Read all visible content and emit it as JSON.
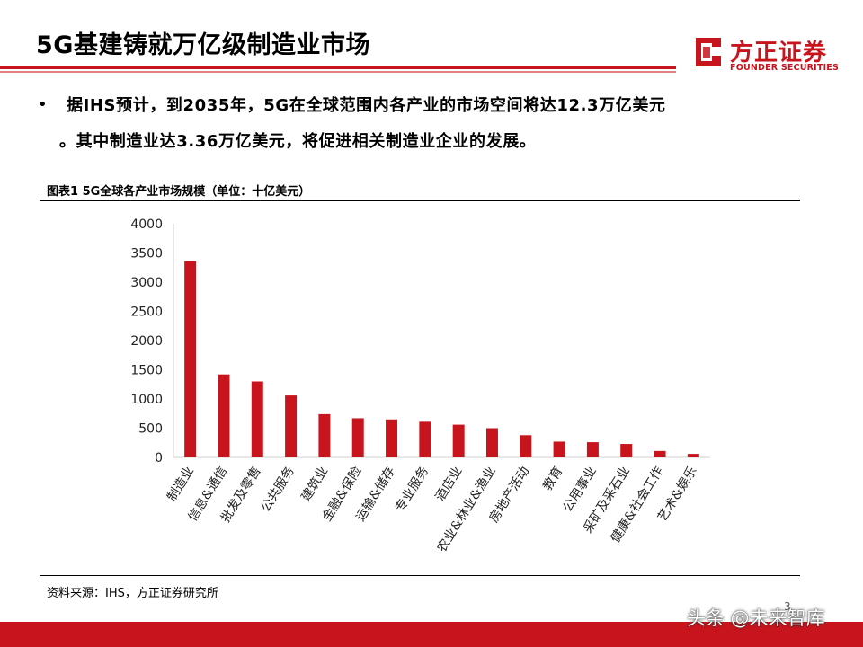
{
  "slide": {
    "title": "5G基建铸就万亿级制造业市场",
    "bullet_line1": "据IHS预计，到2035年，5G在全球范围内各产业的市场空间将达12.3万亿美元",
    "bullet_line2": "。其中制造业达3.36万亿美元，将促进相关制造业企业的发展。",
    "figure_title": "图表1 5G全球各产业市场规模（单位：十亿美元）",
    "source": "资料来源：IHS，方正证券研究所",
    "page_number": "3",
    "watermark": "头条 @未来智库"
  },
  "logo": {
    "name_cn": "方正证券",
    "name_en": "FOUNDER SECURITIES",
    "color": "#c8151d"
  },
  "chart_data": {
    "type": "bar",
    "title": "",
    "xlabel": "",
    "ylabel": "",
    "ylim": [
      0,
      4000
    ],
    "yticks": [
      0,
      500,
      1000,
      1500,
      2000,
      2500,
      3000,
      3500,
      4000
    ],
    "grid": false,
    "bar_color": "#c8151d",
    "categories": [
      "制造业",
      "信息&通信",
      "批发及零售",
      "公共服务",
      "建筑业",
      "金融&保险",
      "运输&储存",
      "专业服务",
      "酒店业",
      "农业&林业&渔业",
      "房地产活动",
      "教育",
      "公用事业",
      "采矿及采石业",
      "健康&社会工作",
      "艺术&娱乐"
    ],
    "values": [
      3360,
      1420,
      1300,
      1060,
      740,
      670,
      650,
      610,
      560,
      500,
      380,
      270,
      260,
      230,
      110,
      60
    ]
  }
}
